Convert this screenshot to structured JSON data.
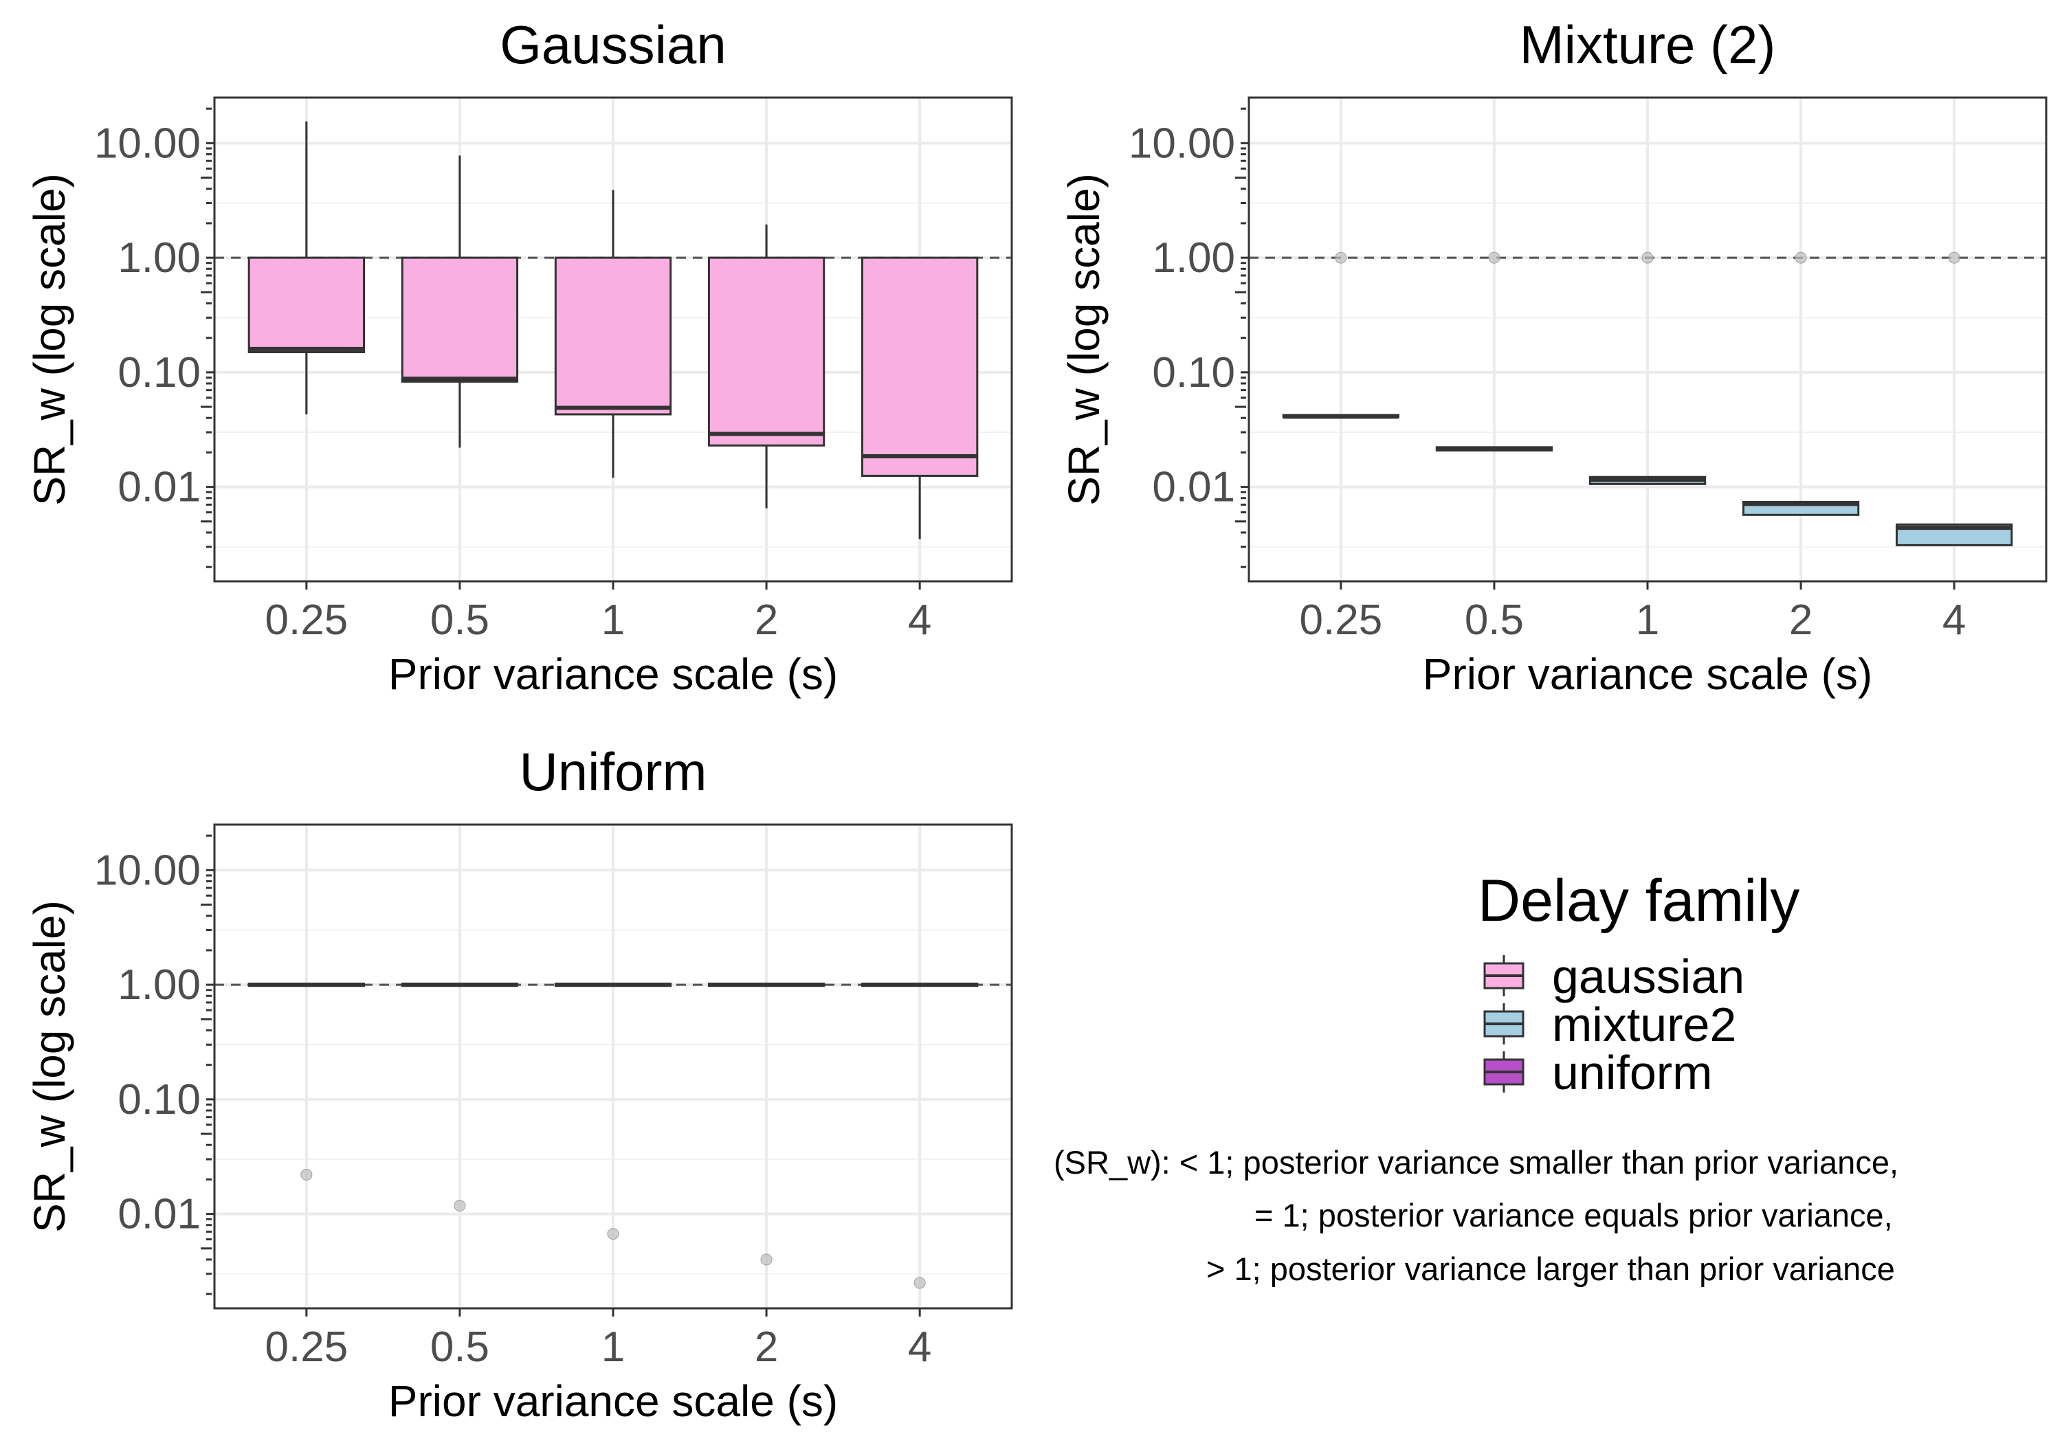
{
  "chart_data": {
    "type": "box",
    "shared": {
      "xlabel": "Prior variance scale (s)",
      "ylabel": "SR_w (log scale)",
      "categories": [
        "0.25",
        "0.5",
        "1",
        "2",
        "4"
      ],
      "y_scale": "log10",
      "ylim": [
        0.0015,
        25
      ],
      "y_ticks": [
        0.01,
        0.1,
        1,
        10
      ],
      "y_tick_labels": [
        "0.01",
        "0.10",
        "1.00",
        "10.00"
      ],
      "reference_line": {
        "y": 1,
        "style": "dashed"
      },
      "grid": true
    },
    "panels": [
      {
        "title": "Gaussian",
        "family": "gaussian",
        "boxes": [
          {
            "category": "0.25",
            "min": 0.043,
            "q1": 0.15,
            "median": 0.16,
            "q3": 1.0,
            "max": 15.5
          },
          {
            "category": "0.5",
            "min": 0.022,
            "q1": 0.083,
            "median": 0.088,
            "q3": 1.0,
            "max": 7.8
          },
          {
            "category": "1",
            "min": 0.012,
            "q1": 0.043,
            "median": 0.049,
            "q3": 1.0,
            "max": 3.9
          },
          {
            "category": "2",
            "min": 0.0065,
            "q1": 0.023,
            "median": 0.029,
            "q3": 1.0,
            "max": 1.95
          },
          {
            "category": "4",
            "min": 0.0035,
            "q1": 0.0125,
            "median": 0.0185,
            "q3": 1.0,
            "max": 1.0
          }
        ],
        "outliers": []
      },
      {
        "title": "Mixture (2)",
        "family": "mixture2",
        "boxes": [
          {
            "category": "0.25",
            "min": 0.0405,
            "q1": 0.0405,
            "median": 0.041,
            "q3": 0.0415,
            "max": 0.0415
          },
          {
            "category": "0.5",
            "min": 0.0208,
            "q1": 0.0208,
            "median": 0.0215,
            "q3": 0.0222,
            "max": 0.0222
          },
          {
            "category": "1",
            "min": 0.0106,
            "q1": 0.0106,
            "median": 0.0115,
            "q3": 0.0122,
            "max": 0.0122
          },
          {
            "category": "2",
            "min": 0.0057,
            "q1": 0.0057,
            "median": 0.0071,
            "q3": 0.0074,
            "max": 0.0074
          },
          {
            "category": "4",
            "min": 0.0031,
            "q1": 0.0031,
            "median": 0.0044,
            "q3": 0.0047,
            "max": 0.0047
          }
        ],
        "outliers": [
          {
            "category": "0.25",
            "y": 1.0
          },
          {
            "category": "0.5",
            "y": 1.0
          },
          {
            "category": "1",
            "y": 1.0
          },
          {
            "category": "2",
            "y": 1.0
          },
          {
            "category": "4",
            "y": 1.0
          }
        ]
      },
      {
        "title": "Uniform",
        "family": "uniform",
        "boxes": [
          {
            "category": "0.25",
            "min": 1.0,
            "q1": 1.0,
            "median": 1.0,
            "q3": 1.0,
            "max": 1.0
          },
          {
            "category": "0.5",
            "min": 1.0,
            "q1": 1.0,
            "median": 1.0,
            "q3": 1.0,
            "max": 1.0
          },
          {
            "category": "1",
            "min": 1.0,
            "q1": 1.0,
            "median": 1.0,
            "q3": 1.0,
            "max": 1.0
          },
          {
            "category": "2",
            "min": 1.0,
            "q1": 1.0,
            "median": 1.0,
            "q3": 1.0,
            "max": 1.0
          },
          {
            "category": "4",
            "min": 1.0,
            "q1": 1.0,
            "median": 1.0,
            "q3": 1.0,
            "max": 1.0
          }
        ],
        "outliers": [
          {
            "category": "0.25",
            "y": 0.022
          },
          {
            "category": "0.5",
            "y": 0.0118
          },
          {
            "category": "1",
            "y": 0.0067
          },
          {
            "category": "2",
            "y": 0.004
          },
          {
            "category": "4",
            "y": 0.0025
          }
        ]
      }
    ],
    "legend": {
      "title": "Delay family",
      "placement": "bottom-right",
      "entries": [
        {
          "label": "gaussian",
          "color": "#F9AFE1"
        },
        {
          "label": "mixture2",
          "color": "#A6CEE3"
        },
        {
          "label": "uniform",
          "color": "#B64FC8"
        }
      ]
    },
    "note": [
      "(SR_w): < 1; posterior variance smaller than prior variance,",
      "= 1; posterior variance equals prior variance,",
      "> 1; posterior variance larger than prior variance"
    ]
  }
}
